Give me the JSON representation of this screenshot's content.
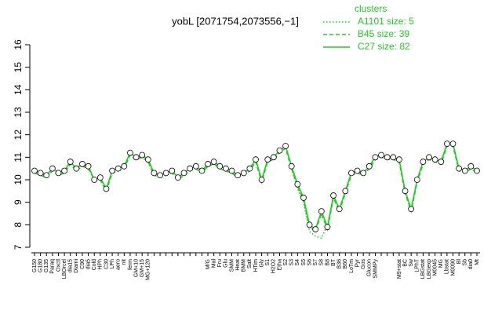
{
  "chart_data": {
    "type": "line",
    "title": "yobL [2071754,2073556,−1]",
    "legend_title": "clusters",
    "legend": "top-right",
    "categories": [
      "G150",
      "G180",
      "G135",
      "Paraq",
      "Oxctl",
      "LBOrcel",
      "dia15",
      "Diami",
      "C90",
      "dia5",
      "Cold",
      "HPh",
      "C30",
      "LPh",
      "aero",
      "nit",
      "ferm",
      "GM+10",
      "GM+15",
      "MG+120",
      null,
      null,
      null,
      null,
      null,
      null,
      null,
      null,
      null,
      "M/G",
      "Mal",
      "Fru",
      "Glu",
      "SMM",
      "Heat",
      "BMM",
      "Salt",
      "HTim",
      "Gly",
      "S1",
      "H2O2",
      "Etha",
      "S2",
      "S3",
      "S4",
      "S5",
      "S6",
      "S7",
      "S8",
      "B8",
      "BT",
      "B36",
      "B60",
      "LoTm",
      "Pyr",
      "Gos",
      "Glucon",
      "SMMPy",
      null,
      null,
      null,
      "M9+stat",
      "BC",
      "Sw",
      "LPhT",
      "LBGstat",
      "LBGexp",
      "M0045",
      "MG",
      "Lbstat",
      "M0090",
      "Bl",
      "Sb",
      "dia0",
      "Mt"
    ],
    "series": [
      {
        "name": "A1101 size: 5",
        "color": "#22cc22",
        "style": "dotted",
        "markers": false,
        "values": [
          null,
          null,
          null,
          null,
          null,
          null,
          null,
          null,
          null,
          null,
          null,
          null,
          null,
          null,
          null,
          null,
          null,
          null,
          null,
          null,
          null,
          null,
          null,
          null,
          null,
          null,
          null,
          null,
          null,
          null,
          null,
          null,
          null,
          null,
          null,
          null,
          null,
          null,
          null,
          null,
          null,
          null,
          null,
          10.5,
          9.6,
          9.0,
          7.7,
          7.5,
          7.4,
          8.0,
          9.2,
          null,
          null,
          null,
          null,
          null,
          null,
          null,
          null,
          null,
          null,
          null,
          null,
          null,
          null,
          null,
          null,
          null,
          null,
          null,
          null,
          null,
          null,
          null,
          null
        ]
      },
      {
        "name": "B45 size: 39",
        "color": "#22cc22",
        "style": "dashed",
        "markers": false,
        "values": [
          10.3,
          10.2,
          10.1,
          10.4,
          10.2,
          10.3,
          10.7,
          10.4,
          10.6,
          10.5,
          10.0,
          10.0,
          9.5,
          10.3,
          10.4,
          10.5,
          11.1,
          10.9,
          11.0,
          10.8,
          10.2,
          10.1,
          10.2,
          10.3,
          10.0,
          10.2,
          10.4,
          10.5,
          10.3,
          10.6,
          10.7,
          10.5,
          10.4,
          10.3,
          10.1,
          10.2,
          10.4,
          10.8,
          9.9,
          10.8,
          10.9,
          11.2,
          11.4,
          10.5,
          9.7,
          9.1,
          7.9,
          7.7,
          8.5,
          7.8,
          9.2,
          8.6,
          9.4,
          10.2,
          10.3,
          10.2,
          10.5,
          10.9,
          11.0,
          10.9,
          10.9,
          10.8,
          9.4,
          8.6,
          9.9,
          10.7,
          10.9,
          10.8,
          10.7,
          11.5,
          11.5,
          10.4,
          10.3,
          10.5,
          10.3
        ]
      },
      {
        "name": "C27 size: 82",
        "color": "#22cc22",
        "style": "solid",
        "markers": true,
        "values": [
          10.4,
          10.3,
          10.2,
          10.5,
          10.3,
          10.4,
          10.8,
          10.5,
          10.7,
          10.6,
          10.0,
          10.1,
          9.6,
          10.4,
          10.5,
          10.6,
          11.2,
          11.0,
          11.1,
          10.9,
          10.3,
          10.2,
          10.3,
          10.4,
          10.1,
          10.3,
          10.5,
          10.6,
          10.4,
          10.7,
          10.8,
          10.6,
          10.5,
          10.4,
          10.2,
          10.3,
          10.5,
          10.9,
          10.0,
          10.9,
          11.0,
          11.3,
          11.5,
          10.6,
          9.8,
          9.2,
          8.0,
          7.8,
          8.6,
          7.9,
          9.3,
          8.7,
          9.5,
          10.3,
          10.4,
          10.3,
          10.6,
          11.0,
          11.1,
          11.0,
          11.0,
          10.9,
          9.5,
          8.7,
          10.0,
          10.8,
          11.0,
          10.9,
          10.8,
          11.6,
          11.6,
          10.5,
          10.4,
          10.6,
          10.4
        ]
      }
    ],
    "ylim": [
      7,
      16
    ],
    "yticks": [
      7,
      8,
      9,
      10,
      11,
      12,
      13,
      14,
      15,
      16
    ]
  }
}
